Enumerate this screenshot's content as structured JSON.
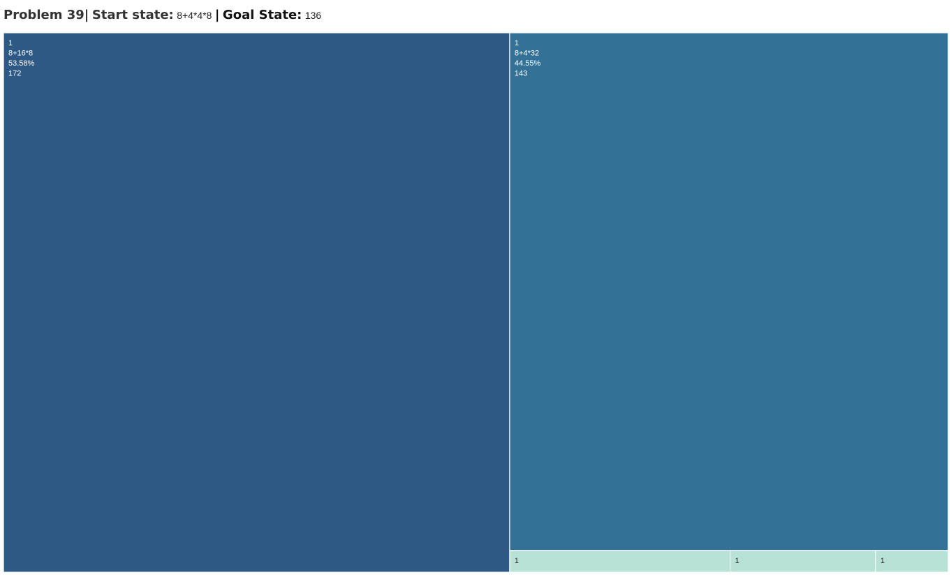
{
  "title": {
    "problem": "Problem 39",
    "sep1": "|",
    "start_label": "Start state:",
    "start_value": "8+4*4*8",
    "sep2": "|",
    "goal_label": "Goal State:",
    "goal_value": "136"
  },
  "colors": {
    "tile_dark": "#2e5984",
    "tile_mid": "#337196",
    "tile_light": "#b8e2d6",
    "border": "#ffffff",
    "label_on_dark": "#ffffff",
    "label_on_light": "#222222"
  },
  "chart_data": {
    "type": "treemap",
    "title": "",
    "leaves": [
      {
        "lines": [
          "1",
          "8+16*8",
          "53.58%",
          "172"
        ],
        "color": "tile_dark",
        "size": 53.58
      },
      {
        "lines": [
          "1",
          "8+4*32",
          "44.55%",
          "143"
        ],
        "color": "tile_mid",
        "size": 44.55
      },
      {
        "lines": [
          "1"
        ],
        "color": "tile_light",
        "size": 0.94
      },
      {
        "lines": [
          "1"
        ],
        "color": "tile_light",
        "size": 0.62
      },
      {
        "lines": [
          "1"
        ],
        "color": "tile_light",
        "size": 0.31
      }
    ]
  }
}
